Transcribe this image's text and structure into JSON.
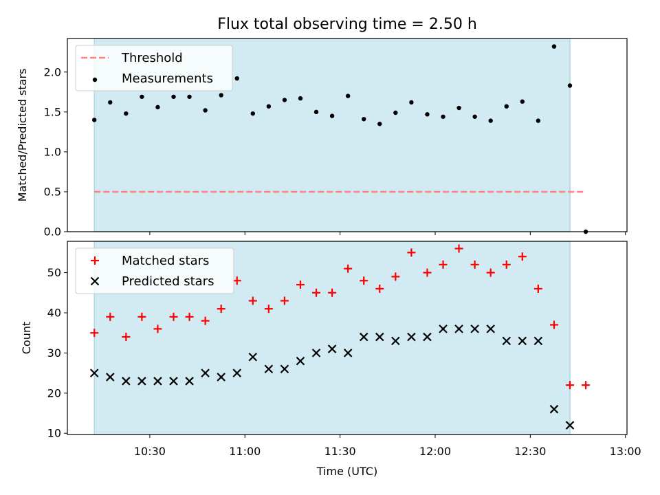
{
  "chart_data": {
    "type": "scatter",
    "title": "Flux total observing time = 2.50 h",
    "xlabel": "Time (UTC)",
    "x_ticks": [
      "10:30",
      "11:00",
      "11:30",
      "12:00",
      "12:30",
      "13:00"
    ],
    "x_tick_minutes": [
      630,
      660,
      690,
      720,
      750,
      780
    ],
    "xlim_minutes": [
      604,
      780.5
    ],
    "observing_window_minutes": [
      612.5,
      762.5
    ],
    "colors": {
      "window": "#add8e6",
      "threshold": "#ff7f7f",
      "measurement": "#000000",
      "matched": "#ff0000",
      "predicted": "#000000"
    },
    "top": {
      "ylabel": "Matched/Predicted stars",
      "ylim": [
        0,
        2.42
      ],
      "y_ticks": [
        "0.0",
        "0.5",
        "1.0",
        "1.5",
        "2.0"
      ],
      "y_tick_values": [
        0,
        0.5,
        1.0,
        1.5,
        2.0
      ],
      "threshold": {
        "value": 0.5,
        "x_start": 612.5,
        "x_end": 767.5
      },
      "legend": [
        "Threshold",
        "Measurements"
      ],
      "measurements": {
        "x": [
          612.5,
          617.5,
          622.5,
          627.5,
          632.5,
          637.5,
          642.5,
          647.5,
          652.5,
          657.5,
          662.5,
          667.5,
          672.5,
          677.5,
          682.5,
          687.5,
          692.5,
          697.5,
          702.5,
          707.5,
          712.5,
          717.5,
          722.5,
          727.5,
          732.5,
          737.5,
          742.5,
          747.5,
          752.5,
          757.5,
          762.5,
          767.5
        ],
        "y": [
          1.4,
          1.62,
          1.48,
          1.69,
          1.56,
          1.69,
          1.69,
          1.52,
          1.71,
          1.92,
          1.48,
          1.57,
          1.65,
          1.67,
          1.5,
          1.45,
          1.7,
          1.41,
          1.35,
          1.49,
          1.62,
          1.47,
          1.44,
          1.55,
          1.44,
          1.39,
          1.57,
          1.63,
          1.39,
          2.32,
          1.83,
          0.0
        ]
      }
    },
    "bottom": {
      "ylabel": "Count",
      "ylim": [
        9.7,
        57.8
      ],
      "y_ticks": [
        "10",
        "20",
        "30",
        "40",
        "50"
      ],
      "y_tick_values": [
        10,
        20,
        30,
        40,
        50
      ],
      "legend": [
        "Matched stars",
        "Predicted stars"
      ],
      "series": [
        {
          "name": "Matched stars",
          "marker": "plus",
          "x": [
            612.5,
            617.5,
            622.5,
            627.5,
            632.5,
            637.5,
            642.5,
            647.5,
            652.5,
            657.5,
            662.5,
            667.5,
            672.5,
            677.5,
            682.5,
            687.5,
            692.5,
            697.5,
            702.5,
            707.5,
            712.5,
            717.5,
            722.5,
            727.5,
            732.5,
            737.5,
            742.5,
            747.5,
            752.5,
            757.5,
            762.5,
            767.5
          ],
          "values": [
            35,
            39,
            34,
            39,
            36,
            39,
            39,
            38,
            41,
            48,
            43,
            41,
            43,
            47,
            45,
            45,
            51,
            48,
            46,
            49,
            55,
            50,
            52,
            56,
            52,
            50,
            52,
            54,
            46,
            37,
            22,
            22
          ]
        },
        {
          "name": "Predicted stars",
          "marker": "x",
          "x": [
            612.5,
            617.5,
            622.5,
            627.5,
            632.5,
            637.5,
            642.5,
            647.5,
            652.5,
            657.5,
            662.5,
            667.5,
            672.5,
            677.5,
            682.5,
            687.5,
            692.5,
            697.5,
            702.5,
            707.5,
            712.5,
            717.5,
            722.5,
            727.5,
            732.5,
            737.5,
            742.5,
            747.5,
            752.5,
            757.5,
            762.5
          ],
          "values": [
            25,
            24,
            23,
            23,
            23,
            23,
            23,
            25,
            24,
            25,
            29,
            26,
            26,
            28,
            30,
            31,
            30,
            34,
            34,
            33,
            34,
            34,
            36,
            36,
            36,
            36,
            33,
            33,
            33,
            16,
            12
          ]
        }
      ]
    }
  }
}
